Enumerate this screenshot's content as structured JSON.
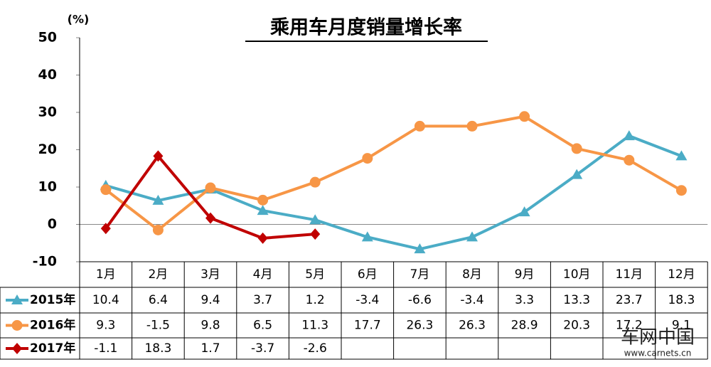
{
  "chart_data": {
    "type": "line",
    "title": "乘用车月度销量增长率",
    "y_label": "(%)",
    "categories": [
      "1月",
      "2月",
      "3月",
      "4月",
      "5月",
      "6月",
      "7月",
      "8月",
      "9月",
      "10月",
      "11月",
      "12月"
    ],
    "series": [
      {
        "name": "2015年",
        "color": "#4bacc6",
        "marker": "triangle",
        "values": [
          10.4,
          6.4,
          9.4,
          3.7,
          1.2,
          -3.4,
          -6.6,
          -3.4,
          3.3,
          13.3,
          23.7,
          18.3
        ]
      },
      {
        "name": "2016年",
        "color": "#f79646",
        "marker": "circle",
        "values": [
          9.3,
          -1.5,
          9.8,
          6.5,
          11.3,
          17.7,
          26.3,
          26.3,
          28.9,
          20.3,
          17.2,
          9.1
        ]
      },
      {
        "name": "2017年",
        "color": "#c00000",
        "marker": "diamond",
        "values": [
          -1.1,
          18.3,
          1.7,
          -3.7,
          -2.6,
          null,
          null,
          null,
          null,
          null,
          null,
          null
        ]
      }
    ],
    "ylim": [
      -10,
      50
    ],
    "yticks": [
      -10,
      0,
      10,
      20,
      30,
      40,
      50
    ],
    "grid": false,
    "watermark": [
      "车网中国",
      "www.carnets.cn"
    ]
  }
}
